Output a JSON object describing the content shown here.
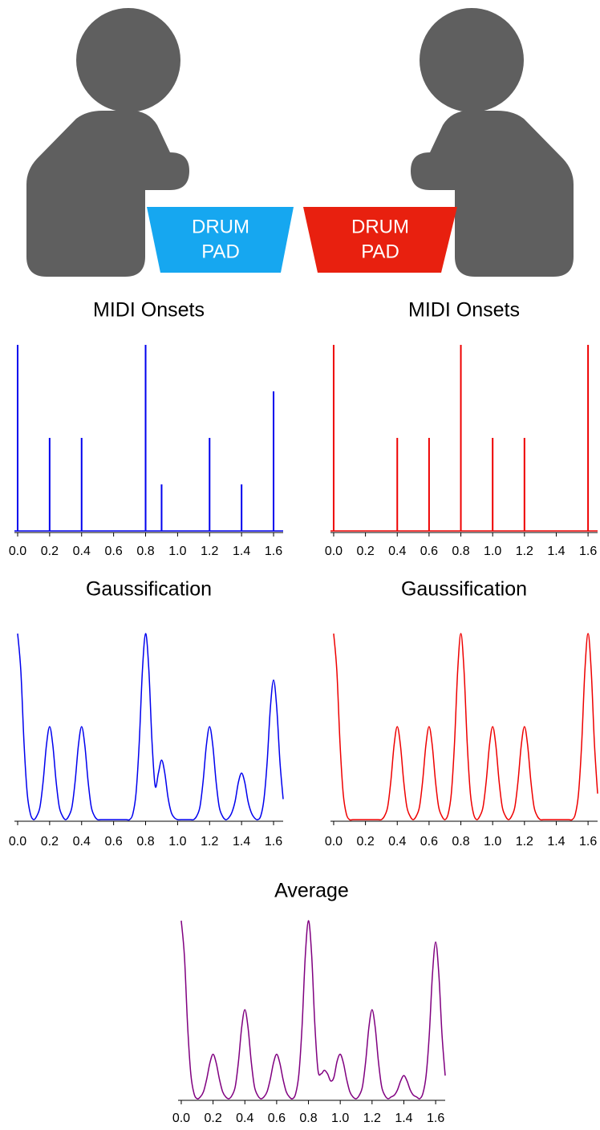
{
  "illustration": {
    "pads": [
      {
        "lines": [
          "DRUM",
          "PAD"
        ],
        "color": "#16a7f0"
      },
      {
        "lines": [
          "DRUM",
          "PAD"
        ],
        "color": "#e8200f"
      }
    ]
  },
  "chart_data": [
    {
      "type": "stem",
      "title": "MIDI Onsets",
      "color": "#0000ee",
      "x": [
        0,
        0.2,
        0.4,
        0.8,
        0.9,
        1.2,
        1.4,
        1.6
      ],
      "values": [
        1,
        0.5,
        0.5,
        1,
        0.25,
        0.5,
        0.25,
        0.75
      ],
      "xlim": [
        -0.02,
        1.66
      ],
      "ylim": [
        0,
        1
      ],
      "xticks": [
        {
          "value": 0,
          "label": "0.0"
        },
        0.2,
        0.4,
        0.6,
        0.8,
        {
          "value": 1,
          "label": "1.0"
        },
        1.2,
        1.4,
        1.6
      ]
    },
    {
      "type": "stem",
      "title": "MIDI Onsets",
      "color": "#ee0000",
      "x": [
        0,
        0.4,
        0.6,
        0.8,
        1.0,
        1.2,
        1.6
      ],
      "values": [
        1,
        0.5,
        0.5,
        1,
        0.5,
        0.5,
        1
      ],
      "xlim": [
        -0.02,
        1.66
      ],
      "ylim": [
        0,
        1
      ],
      "xticks": [
        {
          "value": 0,
          "label": "0.0"
        },
        0.2,
        0.4,
        0.6,
        0.8,
        {
          "value": 1,
          "label": "1.0"
        },
        1.2,
        1.4,
        1.6
      ]
    },
    {
      "type": "line",
      "title": "Gaussification",
      "color": "#0000ee",
      "x": [
        0,
        0.02,
        0.04,
        0.06,
        0.08,
        0.1,
        0.12,
        0.14,
        0.16,
        0.18,
        0.2,
        0.22,
        0.24,
        0.26,
        0.28,
        0.3,
        0.32,
        0.34,
        0.36,
        0.38,
        0.4,
        0.42,
        0.44,
        0.46,
        0.48,
        0.5,
        0.52,
        0.54,
        0.56,
        0.58,
        0.6,
        0.62,
        0.64,
        0.66,
        0.68,
        0.7,
        0.72,
        0.74,
        0.76,
        0.78,
        0.8,
        0.82,
        0.84,
        0.86,
        0.88,
        0.9,
        0.92,
        0.94,
        0.96,
        0.98,
        1,
        1.02,
        1.04,
        1.06,
        1.08,
        1.1,
        1.12,
        1.14,
        1.16,
        1.18,
        1.2,
        1.22,
        1.24,
        1.26,
        1.28,
        1.3,
        1.32,
        1.34,
        1.36,
        1.38,
        1.4,
        1.42,
        1.44,
        1.46,
        1.48,
        1.5,
        1.52,
        1.54,
        1.56,
        1.58,
        1.6,
        1.62,
        1.64,
        1.66
      ],
      "values": [
        1,
        0.8,
        0.41,
        0.14,
        0.03,
        0,
        0.02,
        0.07,
        0.21,
        0.4,
        0.5,
        0.4,
        0.21,
        0.07,
        0.02,
        0,
        0.02,
        0.07,
        0.21,
        0.4,
        0.5,
        0.4,
        0.21,
        0.07,
        0.02,
        0,
        0,
        0,
        0,
        0,
        0,
        0,
        0,
        0,
        0,
        0,
        0.03,
        0.14,
        0.41,
        0.8,
        1,
        0.81,
        0.42,
        0.18,
        0.25,
        0.32,
        0.25,
        0.12,
        0.04,
        0.01,
        0,
        0,
        0,
        0,
        0,
        0,
        0.02,
        0.07,
        0.21,
        0.4,
        0.5,
        0.4,
        0.21,
        0.07,
        0.02,
        0,
        0.01,
        0.04,
        0.1,
        0.2,
        0.25,
        0.2,
        0.1,
        0.04,
        0.01,
        0,
        0.02,
        0.11,
        0.31,
        0.6,
        0.75,
        0.6,
        0.31,
        0.11
      ],
      "xlim": [
        -0.02,
        1.66
      ],
      "ylim": [
        0,
        1
      ],
      "xticks": [
        {
          "value": 0,
          "label": "0.0"
        },
        0.2,
        0.4,
        0.6,
        0.8,
        {
          "value": 1,
          "label": "1.0"
        },
        1.2,
        1.4,
        1.6
      ]
    },
    {
      "type": "line",
      "title": "Gaussification",
      "color": "#ee0000",
      "x": [
        0,
        0.02,
        0.04,
        0.06,
        0.08,
        0.1,
        0.12,
        0.14,
        0.16,
        0.18,
        0.2,
        0.22,
        0.24,
        0.26,
        0.28,
        0.3,
        0.32,
        0.34,
        0.36,
        0.38,
        0.4,
        0.42,
        0.44,
        0.46,
        0.48,
        0.5,
        0.52,
        0.54,
        0.56,
        0.58,
        0.6,
        0.62,
        0.64,
        0.66,
        0.68,
        0.7,
        0.72,
        0.74,
        0.76,
        0.78,
        0.8,
        0.82,
        0.84,
        0.86,
        0.88,
        0.9,
        0.92,
        0.94,
        0.96,
        0.98,
        1,
        1.02,
        1.04,
        1.06,
        1.08,
        1.1,
        1.12,
        1.14,
        1.16,
        1.18,
        1.2,
        1.22,
        1.24,
        1.26,
        1.28,
        1.3,
        1.32,
        1.34,
        1.36,
        1.38,
        1.4,
        1.42,
        1.44,
        1.46,
        1.48,
        1.5,
        1.52,
        1.54,
        1.56,
        1.58,
        1.6,
        1.62,
        1.64,
        1.66
      ],
      "values": [
        1,
        0.8,
        0.41,
        0.14,
        0.03,
        0,
        0,
        0,
        0,
        0,
        0,
        0,
        0,
        0,
        0,
        0,
        0.02,
        0.07,
        0.21,
        0.4,
        0.5,
        0.4,
        0.21,
        0.07,
        0.02,
        0,
        0.02,
        0.07,
        0.21,
        0.4,
        0.5,
        0.4,
        0.21,
        0.07,
        0.02,
        0,
        0.03,
        0.14,
        0.41,
        0.8,
        1,
        0.8,
        0.41,
        0.14,
        0.03,
        0,
        0.02,
        0.07,
        0.21,
        0.4,
        0.5,
        0.4,
        0.21,
        0.07,
        0.02,
        0,
        0.02,
        0.07,
        0.21,
        0.4,
        0.5,
        0.4,
        0.21,
        0.07,
        0.02,
        0,
        0,
        0,
        0,
        0,
        0,
        0,
        0,
        0,
        0,
        0,
        0.03,
        0.14,
        0.41,
        0.8,
        1,
        0.8,
        0.41,
        0.14
      ],
      "xlim": [
        -0.02,
        1.66
      ],
      "ylim": [
        0,
        1
      ],
      "xticks": [
        {
          "value": 0,
          "label": "0.0"
        },
        0.2,
        0.4,
        0.6,
        0.8,
        {
          "value": 1,
          "label": "1.0"
        },
        1.2,
        1.4,
        1.6
      ]
    },
    {
      "type": "line",
      "title": "Average",
      "color": "#800080",
      "x": [
        0,
        0.02,
        0.04,
        0.06,
        0.08,
        0.1,
        0.12,
        0.14,
        0.16,
        0.18,
        0.2,
        0.22,
        0.24,
        0.26,
        0.28,
        0.3,
        0.32,
        0.34,
        0.36,
        0.38,
        0.4,
        0.42,
        0.44,
        0.46,
        0.48,
        0.5,
        0.52,
        0.54,
        0.56,
        0.58,
        0.6,
        0.62,
        0.64,
        0.66,
        0.68,
        0.7,
        0.72,
        0.74,
        0.76,
        0.78,
        0.8,
        0.82,
        0.84,
        0.86,
        0.88,
        0.9,
        0.92,
        0.94,
        0.96,
        0.98,
        1,
        1.02,
        1.04,
        1.06,
        1.08,
        1.1,
        1.12,
        1.14,
        1.16,
        1.18,
        1.2,
        1.22,
        1.24,
        1.26,
        1.28,
        1.3,
        1.32,
        1.34,
        1.36,
        1.38,
        1.4,
        1.42,
        1.44,
        1.46,
        1.48,
        1.5,
        1.52,
        1.54,
        1.56,
        1.58,
        1.6,
        1.62,
        1.64,
        1.66
      ],
      "values": [
        1,
        0.8,
        0.41,
        0.14,
        0.03,
        0,
        0.01,
        0.04,
        0.11,
        0.2,
        0.25,
        0.2,
        0.11,
        0.04,
        0.01,
        0,
        0.02,
        0.07,
        0.21,
        0.4,
        0.5,
        0.4,
        0.21,
        0.07,
        0.02,
        0,
        0.01,
        0.04,
        0.11,
        0.2,
        0.25,
        0.2,
        0.11,
        0.04,
        0.01,
        0,
        0.03,
        0.14,
        0.41,
        0.8,
        1,
        0.81,
        0.42,
        0.16,
        0.14,
        0.16,
        0.14,
        0.1,
        0.12,
        0.21,
        0.25,
        0.2,
        0.11,
        0.04,
        0.01,
        0,
        0.02,
        0.07,
        0.21,
        0.4,
        0.5,
        0.4,
        0.21,
        0.07,
        0.02,
        0,
        0.01,
        0.02,
        0.05,
        0.1,
        0.13,
        0.1,
        0.05,
        0.02,
        0.01,
        0,
        0.03,
        0.13,
        0.36,
        0.7,
        0.88,
        0.7,
        0.36,
        0.13
      ],
      "xlim": [
        -0.02,
        1.66
      ],
      "ylim": [
        0,
        1
      ],
      "xticks": [
        {
          "value": 0,
          "label": "0.0"
        },
        0.2,
        0.4,
        0.6,
        0.8,
        {
          "value": 1,
          "label": "1.0"
        },
        1.2,
        1.4,
        1.6
      ]
    }
  ]
}
